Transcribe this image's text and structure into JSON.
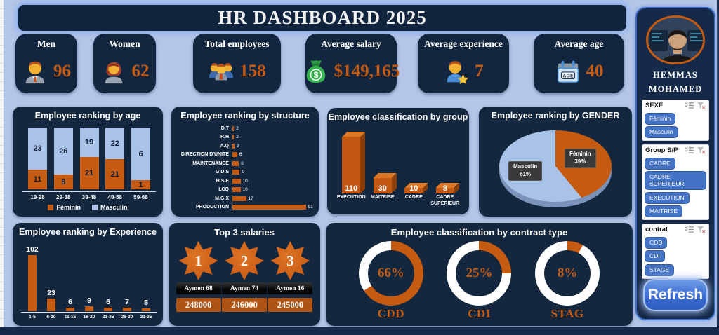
{
  "page": {
    "title_bar": "HR DASHBOARD 2025"
  },
  "kpis": [
    {
      "label": "Men",
      "value": "96",
      "icon": "man-icon"
    },
    {
      "label": "Women",
      "value": "62",
      "icon": "woman-icon"
    },
    {
      "label": "Total employees",
      "value": "158",
      "icon": "group-icon"
    },
    {
      "label": "Average salary",
      "value": "$149,165",
      "icon": "money-bag-icon"
    },
    {
      "label": "Average experience",
      "value": "7",
      "icon": "person-star-icon"
    },
    {
      "label": "Average age",
      "value": "40",
      "icon": "age-calendar-icon"
    }
  ],
  "chart_data": [
    {
      "id": "age",
      "type": "bar",
      "subtype": "stacked-100",
      "title": "Employee ranking by age",
      "categories": [
        "19-28",
        "29-38",
        "39-48",
        "49-58",
        "59-68"
      ],
      "series": [
        {
          "name": "Féminin",
          "color": "#c55a11",
          "values": [
            11,
            8,
            21,
            21,
            1
          ]
        },
        {
          "name": "Masculin",
          "color": "#a9c3e8",
          "values": [
            23,
            26,
            19,
            22,
            6
          ]
        }
      ],
      "legend_position": "bottom"
    },
    {
      "id": "structure",
      "type": "bar",
      "orientation": "horizontal",
      "title": "Employee ranking by structure",
      "categories": [
        "D.T",
        "R.H",
        "A.Q",
        "DIRECTION D'UNITE",
        "MAINTENANCE",
        "G.D.S",
        "H.S.E",
        "LCQ",
        "M.G.X",
        "PRODUCTION"
      ],
      "values": [
        2,
        2,
        3,
        6,
        8,
        9,
        10,
        10,
        17,
        91
      ],
      "color": "#c55a11",
      "xmax": 91
    },
    {
      "id": "group",
      "type": "bar",
      "subtype": "3d",
      "title": "Employee classification by group",
      "categories": [
        "EXECUTION",
        "MAITRISE",
        "CADRE",
        "CADRE SUPERIEUR"
      ],
      "values": [
        110,
        30,
        10,
        8
      ],
      "color": "#c55a11",
      "ymax": 110
    },
    {
      "id": "gender",
      "type": "pie",
      "title": "Employee ranking by GENDER",
      "slices": [
        {
          "label": "Féminin",
          "pct": 39,
          "display": "39%",
          "color": "#c55a11"
        },
        {
          "label": "Masculin",
          "pct": 61,
          "display": "61%",
          "color": "#a9c3e8"
        }
      ]
    },
    {
      "id": "experience",
      "type": "bar",
      "title": "Employee ranking by Experience",
      "categories": [
        "1-5",
        "6-10",
        "11-15",
        "16-20",
        "21-25",
        "26-30",
        "31-35"
      ],
      "values": [
        102,
        23,
        6,
        9,
        6,
        7,
        5
      ],
      "color": "#c55a11",
      "ymax": 102
    },
    {
      "id": "contract",
      "type": "donut-set",
      "title": "Employee classification by contract type",
      "donuts": [
        {
          "label": "CDD",
          "pct": 66,
          "display": "66%"
        },
        {
          "label": "CDI",
          "pct": 25,
          "display": "25%"
        },
        {
          "label": "STAG",
          "pct": 8,
          "display": "8%"
        }
      ],
      "color": "#c55a11",
      "track_color": "#ffffff"
    }
  ],
  "top_salaries": {
    "title": "Top 3 salaries",
    "items": [
      {
        "rank": "1",
        "name": "Aymen 68",
        "salary": "248000"
      },
      {
        "rank": "2",
        "name": "Aymen 74",
        "salary": "246000"
      },
      {
        "rank": "3",
        "name": "Aymen 16",
        "salary": "245000"
      }
    ]
  },
  "sidebar": {
    "profile_name_line1": "HEMMAS",
    "profile_name_line2": "MOHAMED",
    "slicers": [
      {
        "title": "SEXE",
        "items": [
          "Féminin",
          "Masculin"
        ]
      },
      {
        "title": "Group S/P",
        "items": [
          "CADRE",
          "CADRE SUPERIEUR",
          "EXECUTION",
          "MAITRISE"
        ]
      },
      {
        "title": "contrat",
        "items": [
          "CDD",
          "CDI",
          "STAGE"
        ]
      }
    ],
    "refresh_label": "Refresh"
  },
  "colors": {
    "accent_orange": "#c55a11",
    "light_blue": "#a9c3e8",
    "panel_navy": "#13273f",
    "page_bg": "#b4c6e7",
    "slicer_item_blue": "#4472c4"
  }
}
